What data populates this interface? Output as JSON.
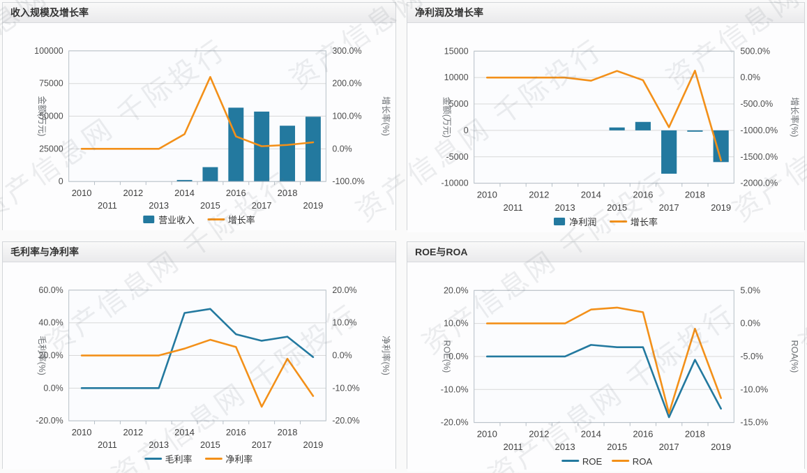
{
  "page": {
    "watermark_text": "资产信息网 千际投行"
  },
  "colors": {
    "bar_blue": "#23799f",
    "line_blue": "#23799f",
    "line_orange": "#f39019",
    "grid": "#d8d8d8",
    "plot_border": "#b6bfc7",
    "tick_text": "#4d4d4d",
    "axis_label_text": "#6b6f73",
    "legend_text": "#333333",
    "plot_bg": "#fbfcfe"
  },
  "chart_data": [
    {
      "type": "bar",
      "title": "收入规模及增长率",
      "categories": [
        "2010",
        "2011",
        "2012",
        "2013",
        "2014",
        "2015",
        "2016",
        "2017",
        "2018",
        "2019"
      ],
      "left_axis": {
        "label": "金额(万元)",
        "min": 0,
        "max": 100000,
        "ticks": [
          0,
          25000,
          50000,
          75000,
          100000
        ],
        "tick_labels": [
          "0",
          "25000",
          "50000",
          "75000",
          "100000"
        ]
      },
      "right_axis": {
        "label": "增长率(%)",
        "min": -100,
        "max": 300,
        "ticks": [
          -100,
          0,
          100,
          200,
          300
        ],
        "tick_labels": [
          "-100.0%",
          "0.0%",
          "100.0%",
          "200.0%",
          "300.0%"
        ]
      },
      "grid": true,
      "legend_position": "bottom",
      "series": [
        {
          "name": "营业收入",
          "kind": "bar",
          "axis": "left",
          "color": "#23799f",
          "values": [
            0,
            0,
            0,
            0,
            1200,
            11000,
            56500,
            53500,
            42700,
            49600
          ]
        },
        {
          "name": "增长率",
          "kind": "line",
          "axis": "right",
          "color": "#f39019",
          "values": [
            0,
            0,
            0,
            0,
            45,
            220,
            38,
            8,
            12,
            20
          ]
        }
      ]
    },
    {
      "type": "bar",
      "title": "净利润及增长率",
      "categories": [
        "2010",
        "2011",
        "2012",
        "2013",
        "2014",
        "2015",
        "2016",
        "2017",
        "2018",
        "2019"
      ],
      "left_axis": {
        "label": "金额(万元)",
        "min": -10000,
        "max": 15000,
        "ticks": [
          -10000,
          -5000,
          0,
          5000,
          10000,
          15000
        ],
        "tick_labels": [
          "-10000",
          "-5000",
          "0",
          "5000",
          "10000",
          "15000"
        ]
      },
      "right_axis": {
        "label": "增长率(%)",
        "min": -2000,
        "max": 500,
        "ticks": [
          -2000,
          -1500,
          -1000,
          -500,
          0,
          500
        ],
        "tick_labels": [
          "-2000.0%",
          "-1500.0%",
          "-1000.0%",
          "-500.0%",
          "0.0%",
          "500.0%"
        ]
      },
      "grid": true,
      "legend_position": "bottom",
      "series": [
        {
          "name": "净利润",
          "kind": "bar",
          "axis": "left",
          "color": "#23799f",
          "values": [
            0,
            0,
            0,
            0,
            0,
            550,
            1600,
            -8200,
            -250,
            -6000
          ]
        },
        {
          "name": "增长率",
          "kind": "line",
          "axis": "right",
          "color": "#f39019",
          "values": [
            0,
            0,
            0,
            0,
            -60,
            125,
            -50,
            -940,
            130,
            -1570
          ]
        }
      ]
    },
    {
      "type": "line",
      "title": "毛利率与净利率",
      "categories": [
        "2010",
        "2011",
        "2012",
        "2013",
        "2014",
        "2015",
        "2016",
        "2017",
        "2018",
        "2019"
      ],
      "left_axis": {
        "label": "毛利率(%)",
        "min": -20,
        "max": 60,
        "ticks": [
          -20,
          0,
          20,
          40,
          60
        ],
        "tick_labels": [
          "-20.0%",
          "0.0%",
          "20.0%",
          "40.0%",
          "60.0%"
        ]
      },
      "right_axis": {
        "label": "净利率(%)",
        "min": -20,
        "max": 20,
        "ticks": [
          -20,
          -10,
          0,
          10,
          20
        ],
        "tick_labels": [
          "-20.0%",
          "-10.0%",
          "0.0%",
          "10.0%",
          "20.0%"
        ]
      },
      "grid": true,
      "legend_position": "bottom",
      "series": [
        {
          "name": "毛利率",
          "kind": "line",
          "axis": "left",
          "color": "#23799f",
          "values": [
            0,
            0,
            0,
            0,
            46,
            48.5,
            33,
            29,
            31.5,
            19
          ]
        },
        {
          "name": "净利率",
          "kind": "line",
          "axis": "right",
          "color": "#f39019",
          "values": [
            0,
            0,
            0,
            0,
            2.1,
            4.8,
            2.6,
            -15.7,
            -1,
            -12.4
          ]
        }
      ]
    },
    {
      "type": "line",
      "title": "ROE与ROA",
      "categories": [
        "2010",
        "2011",
        "2012",
        "2013",
        "2014",
        "2015",
        "2016",
        "2017",
        "2018",
        "2019"
      ],
      "left_axis": {
        "label": "ROE(%)",
        "min": -20,
        "max": 20,
        "ticks": [
          -20,
          -10,
          0,
          10,
          20
        ],
        "tick_labels": [
          "-20.0%",
          "-10.0%",
          "0.0%",
          "10.0%",
          "20.0%"
        ]
      },
      "right_axis": {
        "label": "ROA(%)",
        "min": -15,
        "max": 5,
        "ticks": [
          -15,
          -10,
          -5,
          0,
          5
        ],
        "tick_labels": [
          "-15.0%",
          "-10.0%",
          "-5.0%",
          "0.0%",
          "5.0%"
        ]
      },
      "grid": true,
      "legend_position": "bottom",
      "series": [
        {
          "name": "ROE",
          "kind": "line",
          "axis": "left",
          "color": "#23799f",
          "values": [
            0,
            0,
            0,
            0,
            3.5,
            2.8,
            2.8,
            -18.4,
            -1,
            -15.8
          ]
        },
        {
          "name": "ROA",
          "kind": "line",
          "axis": "right",
          "color": "#f39019",
          "values": [
            0,
            0,
            0,
            0,
            2.1,
            2.4,
            1.7,
            -13.6,
            -0.8,
            -11.3
          ]
        }
      ]
    }
  ]
}
